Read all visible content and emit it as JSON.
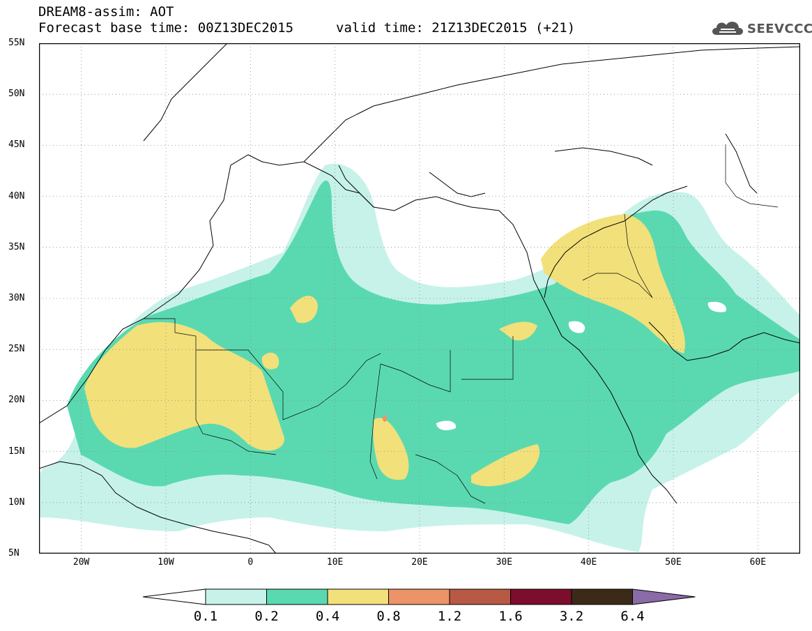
{
  "header": {
    "title": "DREAM8-assim: AOT",
    "base_time": "Forecast base time: 00Z13DEC2015",
    "valid_time": "valid time: 21Z13DEC2015 (+21)",
    "logo_text": "SEEVCCC"
  },
  "map": {
    "lon_range": [
      -25,
      65
    ],
    "lat_range": [
      5,
      55
    ],
    "lat_ticks": [
      "5N",
      "10N",
      "15N",
      "20N",
      "25N",
      "30N",
      "35N",
      "40N",
      "45N",
      "50N",
      "55N"
    ],
    "lat_values": [
      5,
      10,
      15,
      20,
      25,
      30,
      35,
      40,
      45,
      50,
      55
    ],
    "lon_ticks": [
      "20W",
      "10W",
      "0",
      "10E",
      "20E",
      "30E",
      "40E",
      "50E",
      "60E"
    ],
    "lon_values": [
      -20,
      -10,
      0,
      10,
      20,
      30,
      40,
      50,
      60
    ],
    "gridlines": "dotted"
  },
  "colorbar": {
    "levels": [
      "0.1",
      "0.2",
      "0.4",
      "0.8",
      "1.2",
      "1.6",
      "3.2",
      "6.4"
    ],
    "colors": [
      "#c6f2ea",
      "#5ad9b0",
      "#f2e07a",
      "#ec9368",
      "#b85944",
      "#7c0d2c",
      "#3b2a17",
      "#8b6aa8"
    ],
    "under_color": "#ffffff"
  }
}
